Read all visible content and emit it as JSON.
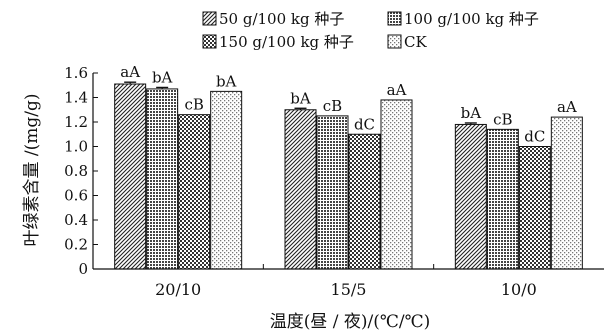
{
  "chart_data": {
    "type": "bar",
    "categories": [
      "20/10",
      "15/5",
      "10/0"
    ],
    "series": [
      {
        "name": "50 g/100 kg 种子",
        "values": [
          1.51,
          1.3,
          1.18
        ],
        "errors": [
          0.015,
          0.012,
          0.012
        ],
        "labels": [
          "aA",
          "bA",
          "bA"
        ]
      },
      {
        "name": "100 g/100 kg 种子",
        "values": [
          1.47,
          1.25,
          1.14
        ],
        "errors": [
          0.012,
          0.0,
          0.0
        ],
        "labels": [
          "bA",
          "cB",
          "cB"
        ]
      },
      {
        "name": "150 g/100 kg 种子",
        "values": [
          1.26,
          1.1,
          1.0
        ],
        "errors": [
          0.0,
          0.0,
          0.0
        ],
        "labels": [
          "cB",
          "dC",
          "dC"
        ]
      },
      {
        "name": "CK",
        "values": [
          1.45,
          1.38,
          1.24
        ],
        "errors": [
          0.0,
          0.0,
          0.0
        ],
        "labels": [
          "bA",
          "aA",
          "aA"
        ]
      }
    ],
    "xlabel": "温度(昼 / 夜)/(℃/℃)",
    "ylabel": "叶绿素含量 /(mg/g)",
    "ylim": [
      0,
      1.6
    ],
    "yticks": [
      "0",
      "0.2",
      "0.4",
      "0.6",
      "0.8",
      "1.0",
      "1.2",
      "1.4",
      "1.6"
    ],
    "grid": false,
    "legend_position": "top"
  }
}
